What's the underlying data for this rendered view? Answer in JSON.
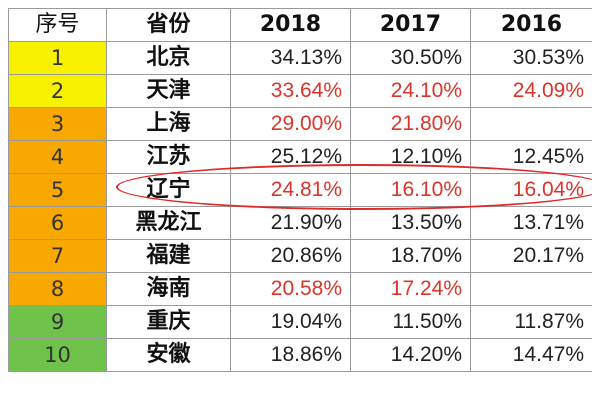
{
  "table": {
    "headers": [
      "序号",
      "省份",
      "2018",
      "2017",
      "2016"
    ],
    "colors": {
      "yellow": "#f7f100",
      "orange": "#f8a800",
      "green": "#6fc34a",
      "red_text": "#d9352a",
      "highlight_ellipse": "#e02a2a"
    },
    "rows": [
      {
        "idx": "1",
        "province": "北京",
        "y2018": "34.13%",
        "y2017": "30.50%",
        "y2016": "30.53%",
        "band": "yellow",
        "c2018": "black",
        "c2017": "black",
        "c2016": "black"
      },
      {
        "idx": "2",
        "province": "天津",
        "y2018": "33.64%",
        "y2017": "24.10%",
        "y2016": "24.09%",
        "band": "yellow",
        "c2018": "red",
        "c2017": "red",
        "c2016": "red"
      },
      {
        "idx": "3",
        "province": "上海",
        "y2018": "29.00%",
        "y2017": "21.80%",
        "y2016": "",
        "band": "orange",
        "c2018": "red",
        "c2017": "red",
        "c2016": "black"
      },
      {
        "idx": "4",
        "province": "江苏",
        "y2018": "25.12%",
        "y2017": "12.10%",
        "y2016": "12.45%",
        "band": "orange",
        "c2018": "black",
        "c2017": "black",
        "c2016": "black",
        "highlighted": true
      },
      {
        "idx": "5",
        "province": "辽宁",
        "y2018": "24.81%",
        "y2017": "16.10%",
        "y2016": "16.04%",
        "band": "orange",
        "c2018": "red",
        "c2017": "red",
        "c2016": "red"
      },
      {
        "idx": "6",
        "province": "黑龙江",
        "y2018": "21.90%",
        "y2017": "13.50%",
        "y2016": "13.71%",
        "band": "orange",
        "c2018": "black",
        "c2017": "black",
        "c2016": "black"
      },
      {
        "idx": "7",
        "province": "福建",
        "y2018": "20.86%",
        "y2017": "18.70%",
        "y2016": "20.17%",
        "band": "orange",
        "c2018": "black",
        "c2017": "black",
        "c2016": "black"
      },
      {
        "idx": "8",
        "province": "海南",
        "y2018": "20.58%",
        "y2017": "17.24%",
        "y2016": "",
        "band": "orange",
        "c2018": "red",
        "c2017": "red",
        "c2016": "black"
      },
      {
        "idx": "9",
        "province": "重庆",
        "y2018": "19.04%",
        "y2017": "11.50%",
        "y2016": "11.87%",
        "band": "green",
        "c2018": "black",
        "c2017": "black",
        "c2016": "black"
      },
      {
        "idx": "10",
        "province": "安徽",
        "y2018": "18.86%",
        "y2017": "14.20%",
        "y2016": "14.47%",
        "band": "green",
        "c2018": "black",
        "c2017": "black",
        "c2016": "black"
      }
    ]
  }
}
